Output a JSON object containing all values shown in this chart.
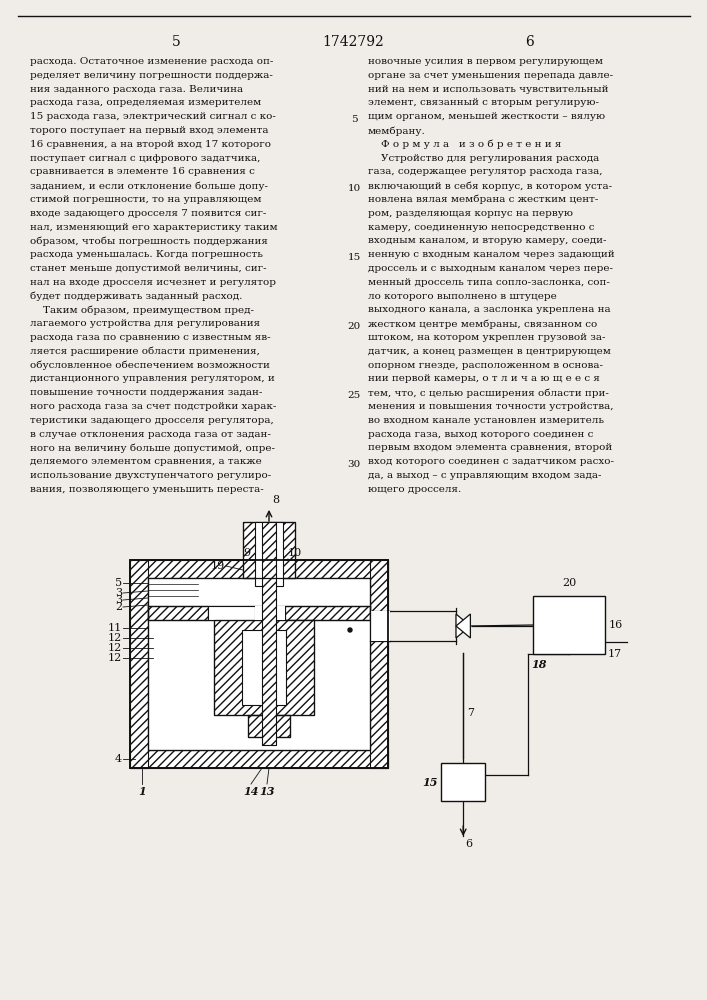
{
  "bg_color": "#f0ede8",
  "text_color": "#111111",
  "page_left": "5",
  "page_center": "1742792",
  "page_right": "6",
  "left_col": [
    "расхода. Остаточное изменение расхода оп-",
    "ределяет величину погрешности поддержа-",
    "ния заданного расхода газа. Величина",
    "расхода газа, определяемая измерителем",
    "15 расхода газа, электрический сигнал с ко-",
    "торого поступает на первый вход элемента",
    "16 сравнения, а на второй вход 17 которого",
    "поступает сигнал с цифрового задатчика,",
    "сравнивается в элементе 16 сравнения с",
    "заданием, и если отклонение больше допу-",
    "стимой погрешности, то на управляющем",
    "входе задающего дросселя 7 появится сиг-",
    "нал, изменяющий его характеристику таким",
    "образом, чтобы погрешность поддержания",
    "расхода уменьшалась. Когда погрешность",
    "станет меньше допустимой величины, сиг-",
    "нал на входе дросселя исчезнет и регулятор",
    "будет поддерживать заданный расход.",
    "    Таким образом, преимуществом пред-",
    "лагаемого устройства для регулирования",
    "расхода газа по сравнению с известным яв-",
    "ляется расширение области применения,",
    "обусловленное обеспечением возможности",
    "дистанционного управления регулятором, и",
    "повышение точности поддержания задан-",
    "ного расхода газа за счет подстройки харак-",
    "теристики задающего дросселя регулятора,",
    "в случае отклонения расхода газа от задан-",
    "ного на величину больше допустимой, опре-",
    "деляемого элементом сравнения, а также",
    "использование двухступенчатого регулиро-",
    "вания, позволяющего уменьшить переста-"
  ],
  "right_col": [
    "новочные усилия в первом регулирующем",
    "органе за счет уменьшения перепада давле-",
    "ний на нем и использовать чувствительный",
    "элемент, связанный с вторым регулирую-",
    "щим органом, меньшей жесткости – вялую",
    "мембрану.",
    "    Ф о р м у л а   и з о б р е т е н и я",
    "    Устройство для регулирования расхода",
    "газа, содержащее регулятор расхода газа,",
    "включающий в себя корпус, в котором уста-",
    "новлена вялая мембрана с жестким цент-",
    "ром, разделяющая корпус на первую",
    "камеру, соединенную непосредственно с",
    "входным каналом, и вторую камеру, соеди-",
    "ненную с входным каналом через задающий",
    "дроссель и с выходным каналом через пере-",
    "менный дроссель типа сопло-заслонка, соп-",
    "ло которого выполнено в штуцере",
    "выходного канала, а заслонка укреплена на",
    "жестком центре мембраны, связанном со",
    "штоком, на котором укреплен грузовой за-",
    "датчик, а конец размещен в центрирующем",
    "опорном гнезде, расположенном в основа-",
    "нии первой камеры, о т л и ч а ю щ е е с я",
    "тем, что, с целью расширения области при-",
    "менения и повышения точности устройства,",
    "во входном канале установлен измеритель",
    "расхода газа, выход которого соединен с",
    "первым входом элемента сравнения, второй",
    "вход которого соединен с задатчиком расхо-",
    "да, а выход – с управляющим входом зада-",
    "ющего дросселя."
  ],
  "line_numbers": [
    [
      "5",
      4
    ],
    [
      "10",
      9
    ],
    [
      "15",
      14
    ],
    [
      "20",
      19
    ],
    [
      "25",
      24
    ],
    [
      "30",
      29
    ]
  ]
}
